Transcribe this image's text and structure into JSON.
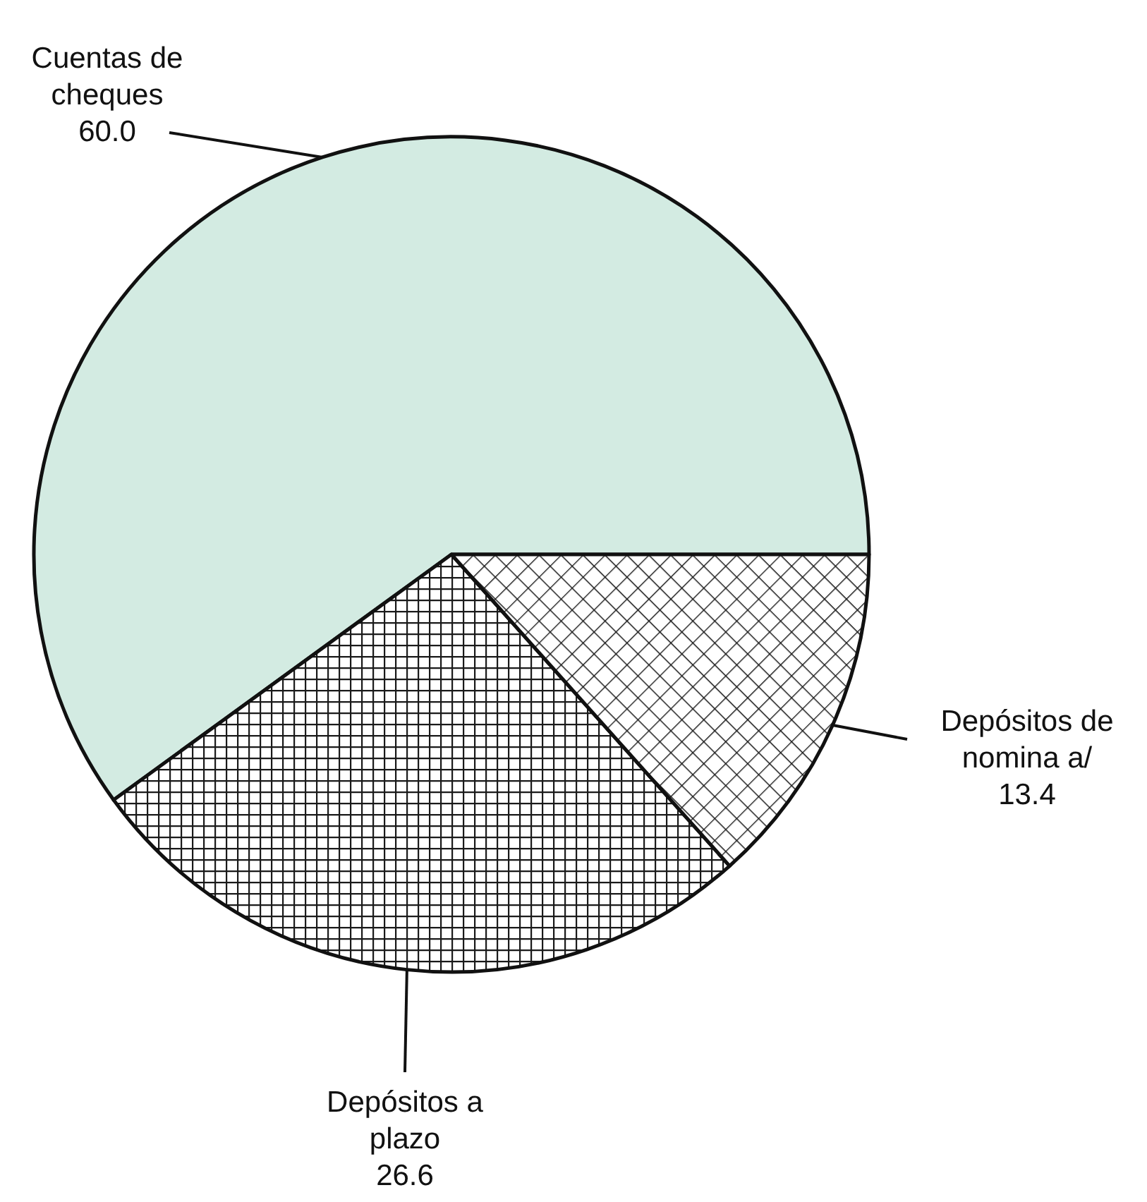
{
  "chart_data": {
    "type": "pie",
    "categories": [
      "Cuentas de cheques",
      "Depósitos a plazo",
      "Depósitos de nomina a/"
    ],
    "values": [
      60.0,
      26.6,
      13.4
    ],
    "colors": [
      "#d3ebe2",
      "#1a1a1a",
      "#1a1a1a"
    ],
    "value_labels": [
      "60.0",
      "26.6",
      "13.4"
    ]
  }
}
